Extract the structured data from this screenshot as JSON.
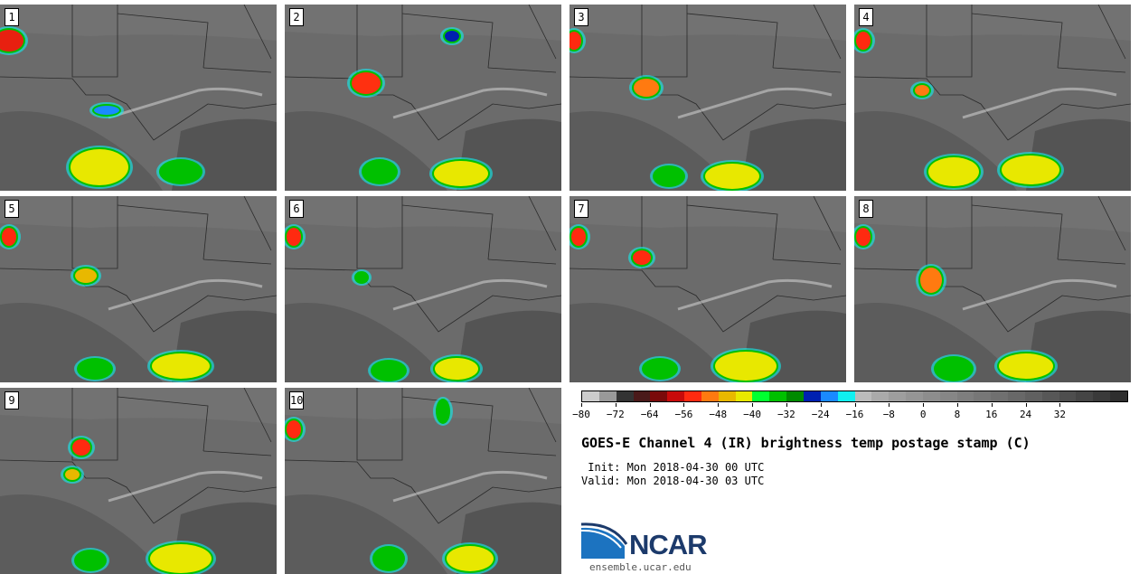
{
  "panels": [
    {
      "label": "1"
    },
    {
      "label": "2"
    },
    {
      "label": "3"
    },
    {
      "label": "4"
    },
    {
      "label": "5"
    },
    {
      "label": "6"
    },
    {
      "label": "7"
    },
    {
      "label": "8"
    },
    {
      "label": "9"
    },
    {
      "label": "10"
    }
  ],
  "colorbar": {
    "colors": [
      "#cccccc",
      "#999999",
      "#333333",
      "#4a1a1a",
      "#7a0a0a",
      "#c80a0a",
      "#ff2a10",
      "#ff7a10",
      "#e8b800",
      "#e8e800",
      "#00ff30",
      "#00c000",
      "#008a00",
      "#0020b0",
      "#1a8aff",
      "#10f0f0",
      "#bbbbbb",
      "#aaaaaa",
      "#9e9e9e",
      "#959595",
      "#8d8d8d",
      "#868686",
      "#7e7e7e",
      "#777777",
      "#707070",
      "#686868",
      "#606060",
      "#575757",
      "#4e4e4e",
      "#454545",
      "#3a3a3a",
      "#2e2e2e"
    ],
    "tick_labels": [
      "−80",
      "−72",
      "−64",
      "−56",
      "−48",
      "−40",
      "−32",
      "−24",
      "−16",
      "−8",
      "0",
      "8",
      "16",
      "24",
      "32"
    ]
  },
  "title": "GOES-E Channel 4 (IR) brightness temp postage stamp (C)",
  "init": " Init: Mon 2018-04-30 00 UTC",
  "valid": "Valid: Mon 2018-04-30 03 UTC",
  "logo_text": "NCAR",
  "url": "ensemble.ucar.edu"
}
